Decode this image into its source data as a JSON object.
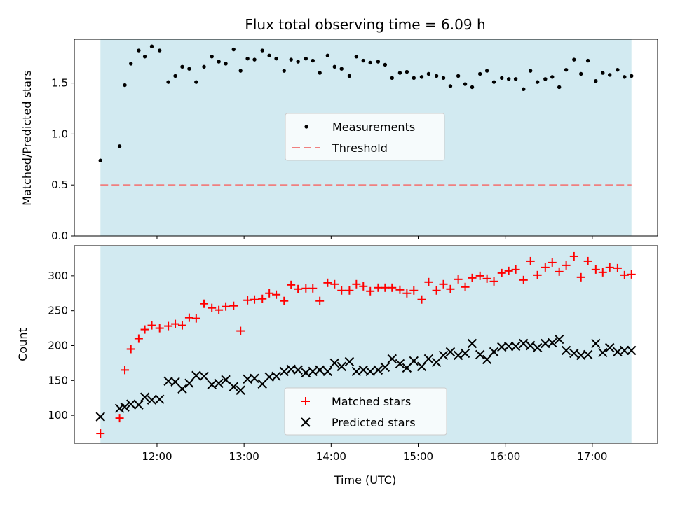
{
  "chart_data": [
    {
      "type": "scatter",
      "title": "Flux total observing time = 6.09 h",
      "ylabel": "Matched/Predicted stars",
      "xlabel": "",
      "x_unit": "hours UTC",
      "xlim": [
        11.05,
        17.75
      ],
      "ylim": [
        0.0,
        1.93
      ],
      "yticks": [
        0.0,
        0.5,
        1.0,
        1.5
      ],
      "ytick_labels": [
        "0.0",
        "0.5",
        "1.0",
        "1.5"
      ],
      "shaded_span": [
        11.35,
        17.45
      ],
      "colors": {
        "shade": "#add8e6",
        "measurements": "#000000",
        "threshold": "#f08080"
      },
      "legend": {
        "placement": "center",
        "entries": [
          "Measurements",
          "Threshold"
        ]
      },
      "threshold": 0.5,
      "series": [
        {
          "name": "Measurements",
          "x": [
            11.35,
            11.57,
            11.63,
            11.7,
            11.79,
            11.86,
            11.94,
            12.03,
            12.13,
            12.21,
            12.29,
            12.37,
            12.45,
            12.54,
            12.63,
            12.71,
            12.79,
            12.88,
            12.96,
            13.04,
            13.12,
            13.21,
            13.29,
            13.37,
            13.46,
            13.54,
            13.62,
            13.71,
            13.79,
            13.87,
            13.96,
            14.04,
            14.12,
            14.21,
            14.29,
            14.37,
            14.45,
            14.54,
            14.62,
            14.7,
            14.79,
            14.87,
            14.95,
            15.04,
            15.12,
            15.21,
            15.29,
            15.37,
            15.46,
            15.54,
            15.62,
            15.71,
            15.79,
            15.87,
            15.96,
            16.04,
            16.12,
            16.21,
            16.29,
            16.37,
            16.46,
            16.54,
            16.62,
            16.7,
            16.79,
            16.87,
            16.95,
            17.04,
            17.12,
            17.2,
            17.29,
            17.37,
            17.45
          ],
          "y": [
            0.74,
            0.88,
            1.48,
            1.69,
            1.82,
            1.76,
            1.86,
            1.82,
            1.51,
            1.57,
            1.66,
            1.64,
            1.51,
            1.66,
            1.76,
            1.71,
            1.69,
            1.83,
            1.62,
            1.74,
            1.73,
            1.82,
            1.77,
            1.74,
            1.62,
            1.73,
            1.71,
            1.74,
            1.72,
            1.6,
            1.77,
            1.66,
            1.64,
            1.57,
            1.76,
            1.72,
            1.7,
            1.71,
            1.68,
            1.55,
            1.6,
            1.61,
            1.55,
            1.56,
            1.59,
            1.57,
            1.55,
            1.47,
            1.57,
            1.49,
            1.46,
            1.59,
            1.62,
            1.51,
            1.55,
            1.54,
            1.54,
            1.44,
            1.62,
            1.51,
            1.54,
            1.56,
            1.46,
            1.63,
            1.73,
            1.59,
            1.72,
            1.52,
            1.6,
            1.58,
            1.63,
            1.56,
            1.57
          ]
        }
      ]
    },
    {
      "type": "scatter",
      "title": "",
      "ylabel": "Count",
      "xlabel": "Time (UTC)",
      "x_unit": "hours UTC",
      "xlim": [
        11.05,
        17.75
      ],
      "ylim": [
        60,
        343
      ],
      "yticks": [
        100,
        150,
        200,
        250,
        300
      ],
      "ytick_labels": [
        "100",
        "150",
        "200",
        "250",
        "300"
      ],
      "xticks": [
        12,
        13,
        14,
        15,
        16,
        17
      ],
      "xtick_labels": [
        "12:00",
        "13:00",
        "14:00",
        "15:00",
        "16:00",
        "17:00"
      ],
      "shaded_span": [
        11.35,
        17.45
      ],
      "colors": {
        "shade": "#add8e6",
        "matched": "#ff0000",
        "predicted": "#000000"
      },
      "legend": {
        "placement": "lower center",
        "entries": [
          "Matched stars",
          "Predicted stars"
        ]
      },
      "series": [
        {
          "name": "Matched stars",
          "x": [
            11.35,
            11.57,
            11.63,
            11.7,
            11.79,
            11.86,
            11.94,
            12.03,
            12.13,
            12.21,
            12.29,
            12.37,
            12.45,
            12.54,
            12.63,
            12.71,
            12.79,
            12.88,
            12.96,
            13.04,
            13.12,
            13.21,
            13.29,
            13.37,
            13.46,
            13.54,
            13.62,
            13.71,
            13.79,
            13.87,
            13.96,
            14.04,
            14.12,
            14.21,
            14.29,
            14.37,
            14.45,
            14.54,
            14.62,
            14.7,
            14.79,
            14.87,
            14.95,
            15.04,
            15.12,
            15.21,
            15.29,
            15.37,
            15.46,
            15.54,
            15.62,
            15.71,
            15.79,
            15.87,
            15.96,
            16.04,
            16.12,
            16.21,
            16.29,
            16.37,
            16.46,
            16.54,
            16.62,
            16.7,
            16.79,
            16.87,
            16.95,
            17.04,
            17.12,
            17.2,
            17.29,
            17.37,
            17.45
          ],
          "y": [
            74,
            96,
            165,
            195,
            210,
            223,
            229,
            225,
            228,
            231,
            229,
            240,
            239,
            260,
            254,
            251,
            256,
            257,
            221,
            265,
            266,
            267,
            275,
            273,
            264,
            287,
            281,
            282,
            282,
            264,
            290,
            288,
            279,
            279,
            288,
            285,
            278,
            283,
            283,
            283,
            280,
            275,
            279,
            266,
            291,
            279,
            288,
            281,
            295,
            284,
            297,
            300,
            296,
            292,
            304,
            307,
            309,
            294,
            321,
            301,
            312,
            319,
            306,
            315,
            328,
            298,
            321,
            309,
            305,
            312,
            311,
            301,
            302
          ]
        },
        {
          "name": "Predicted stars",
          "x": [
            11.35,
            11.57,
            11.63,
            11.7,
            11.79,
            11.86,
            11.94,
            12.03,
            12.13,
            12.21,
            12.29,
            12.37,
            12.45,
            12.54,
            12.63,
            12.71,
            12.79,
            12.88,
            12.96,
            13.04,
            13.12,
            13.21,
            13.29,
            13.37,
            13.46,
            13.54,
            13.62,
            13.71,
            13.79,
            13.87,
            13.96,
            14.04,
            14.12,
            14.21,
            14.29,
            14.37,
            14.45,
            14.54,
            14.62,
            14.7,
            14.79,
            14.87,
            14.95,
            15.04,
            15.12,
            15.21,
            15.29,
            15.37,
            15.46,
            15.54,
            15.62,
            15.71,
            15.79,
            15.87,
            15.96,
            16.04,
            16.12,
            16.21,
            16.29,
            16.37,
            16.46,
            16.54,
            16.62,
            16.7,
            16.79,
            16.87,
            16.95,
            17.04,
            17.12,
            17.2,
            17.29,
            17.37,
            17.45
          ],
          "y": [
            98,
            110,
            112,
            116,
            115,
            126,
            122,
            123,
            149,
            148,
            138,
            146,
            157,
            156,
            144,
            146,
            151,
            141,
            136,
            152,
            153,
            145,
            155,
            156,
            163,
            166,
            165,
            161,
            163,
            165,
            163,
            175,
            170,
            177,
            163,
            165,
            163,
            165,
            169,
            181,
            174,
            168,
            178,
            170,
            181,
            176,
            186,
            191,
            186,
            189,
            203,
            187,
            180,
            191,
            198,
            199,
            199,
            203,
            200,
            197,
            203,
            204,
            209,
            193,
            189,
            186,
            187,
            203,
            190,
            197,
            191,
            193,
            193
          ]
        }
      ]
    }
  ]
}
